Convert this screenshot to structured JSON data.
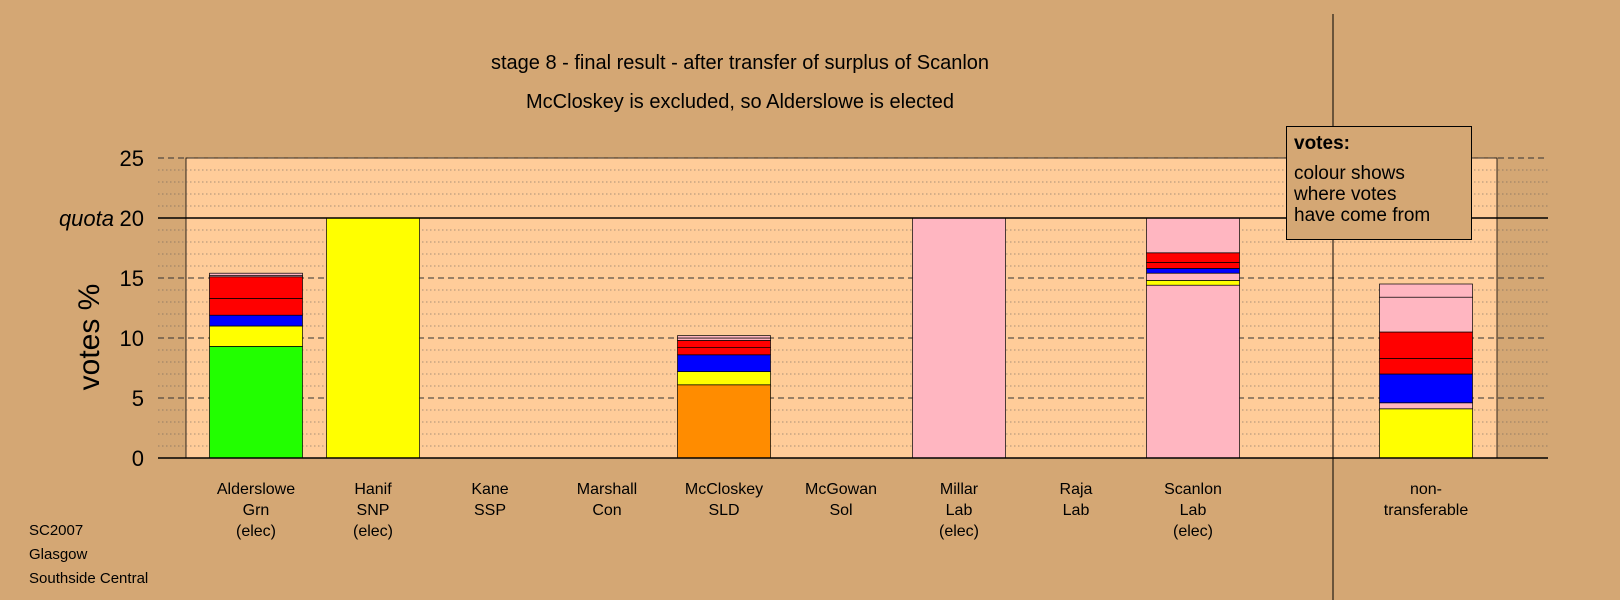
{
  "chart_data": {
    "type": "bar",
    "stacked": true,
    "title": "stage 8 - final result - after transfer of surplus of Scanlon",
    "subtitle": "McCloskey is excluded, so Alderslowe is elected",
    "ylabel": "votes %",
    "ylim": [
      0,
      25
    ],
    "yticks": [
      "0",
      "5",
      "10",
      "15",
      "20",
      "25"
    ],
    "quota_label": "quota",
    "quota_value": 20,
    "grid": true,
    "categories": [
      {
        "lines": [
          "Alderslowe",
          "Grn",
          "(elec)"
        ]
      },
      {
        "lines": [
          "Hanif",
          "SNP",
          "(elec)"
        ]
      },
      {
        "lines": [
          "Kane",
          "SSP"
        ]
      },
      {
        "lines": [
          "Marshall",
          "Con"
        ]
      },
      {
        "lines": [
          "McCloskey",
          "SLD"
        ]
      },
      {
        "lines": [
          "McGowan",
          "Sol"
        ]
      },
      {
        "lines": [
          "Millar",
          "Lab",
          "(elec)"
        ]
      },
      {
        "lines": [
          "Raja",
          "Lab"
        ]
      },
      {
        "lines": [
          "Scanlon",
          "Lab",
          "(elec)"
        ]
      },
      {
        "lines": [
          "non-",
          "transferable"
        ]
      }
    ],
    "stacks": [
      [
        {
          "value": 9.3,
          "color": "#22ff00"
        },
        {
          "value": 1.7,
          "color": "#ffff00"
        },
        {
          "value": 0.9,
          "color": "#0000ff"
        },
        {
          "value": 1.4,
          "color": "#ff0000"
        },
        {
          "value": 1.8,
          "color": "#ff0000"
        },
        {
          "value": 0.1,
          "color": "#ffb6c1"
        },
        {
          "value": 0.2,
          "color": "#ffb6c1"
        }
      ],
      [
        {
          "value": 20.0,
          "color": "#ffff00"
        }
      ],
      [],
      [],
      [
        {
          "value": 6.1,
          "color": "#ff8c00"
        },
        {
          "value": 1.1,
          "color": "#ffff00"
        },
        {
          "value": 1.4,
          "color": "#0000ff"
        },
        {
          "value": 0.6,
          "color": "#ff0000"
        },
        {
          "value": 0.6,
          "color": "#ff0000"
        },
        {
          "value": 0.2,
          "color": "#ffb6c1"
        },
        {
          "value": 0.2,
          "color": "#ffb6c1"
        }
      ],
      [],
      [
        {
          "value": 20.0,
          "color": "#ffb6c1"
        }
      ],
      [],
      [
        {
          "value": 14.4,
          "color": "#ffb6c1"
        },
        {
          "value": 0.4,
          "color": "#ffff00"
        },
        {
          "value": 0.6,
          "color": "#ffb6c1"
        },
        {
          "value": 0.4,
          "color": "#0000ff"
        },
        {
          "value": 0.5,
          "color": "#ff0000"
        },
        {
          "value": 0.8,
          "color": "#ff0000"
        },
        {
          "value": 2.9,
          "color": "#ffb6c1"
        }
      ],
      [
        {
          "value": 4.1,
          "color": "#ffff00"
        },
        {
          "value": 0.5,
          "color": "#ffb6c1"
        },
        {
          "value": 2.4,
          "color": "#0000ff"
        },
        {
          "value": 1.3,
          "color": "#ff0000"
        },
        {
          "value": 2.2,
          "color": "#ff0000"
        },
        {
          "value": 2.9,
          "color": "#ffb6c1"
        },
        {
          "value": 1.1,
          "color": "#ffb6c1"
        }
      ]
    ]
  },
  "legend": {
    "heading": "votes:",
    "line1": "colour shows",
    "line2": "where votes",
    "line3": "have come from"
  },
  "footer": {
    "line1": "SC2007",
    "line2": "Glasgow",
    "line3": "Southside Central"
  },
  "colors": {
    "background": "#d4a774",
    "plot_area": "#ffcc99"
  }
}
